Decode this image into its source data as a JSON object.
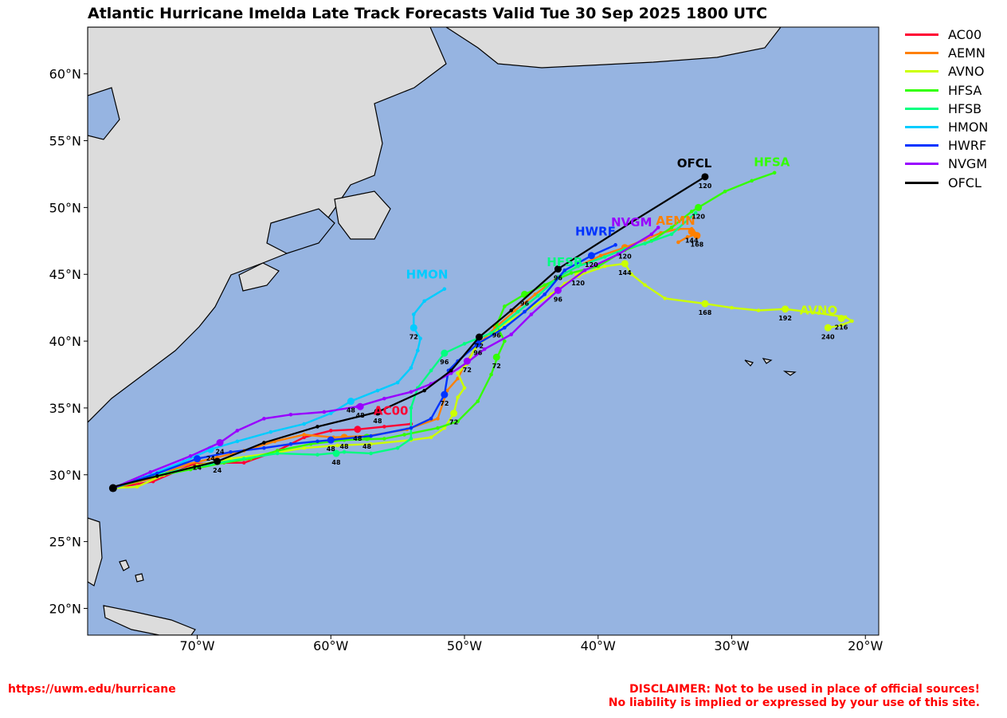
{
  "title": "Atlantic Hurricane Imelda Late Track Forecasts Valid Tue 30 Sep 2025 1800 UTC",
  "footer": {
    "link": "https://uwm.edu/hurricane",
    "disclaimer_line1": "DISCLAIMER: Not to be used in place of official sources!",
    "disclaimer_line2": "No liability is implied or expressed by your use of this site."
  },
  "colors": {
    "ocean": "#96b4e1",
    "land": "#dcdcdc"
  },
  "chart_data": {
    "type": "line",
    "xlabel": "",
    "ylabel": "",
    "xlim": [
      -78.2,
      -19.0
    ],
    "ylim": [
      18.0,
      63.5
    ],
    "x_ticks": [
      -70,
      -60,
      -50,
      -40,
      -30,
      -20
    ],
    "x_tick_labels": [
      "70°W",
      "60°W",
      "50°W",
      "40°W",
      "30°W",
      "20°W"
    ],
    "y_ticks": [
      20,
      25,
      30,
      35,
      40,
      45,
      50,
      55,
      60
    ],
    "y_tick_labels": [
      "20°N",
      "25°N",
      "30°N",
      "35°N",
      "40°N",
      "45°N",
      "50°N",
      "55°N",
      "60°N"
    ],
    "legend_position": "outside-right",
    "series": [
      {
        "name": "AC00",
        "color": "#ff0033",
        "points": [
          [
            -76.3,
            29.0
          ],
          [
            -73.3,
            29.5
          ],
          [
            -70.3,
            30.8
          ],
          [
            -68.0,
            30.9
          ],
          [
            -66.5,
            30.9
          ],
          [
            -64.0,
            31.8
          ],
          [
            -62.0,
            32.8
          ],
          [
            -60.0,
            33.3
          ],
          [
            -58.0,
            33.4
          ],
          [
            -56.0,
            33.6
          ],
          [
            -54.0,
            33.8
          ]
        ],
        "major": [
          {
            "x": -58.0,
            "y": 33.4,
            "h": "48"
          }
        ],
        "label": {
          "x": -55.5,
          "y": 34.5,
          "text": "AC00"
        }
      },
      {
        "name": "AEMN",
        "color": "#ff8000",
        "points": [
          [
            -76.3,
            29.0
          ],
          [
            -73.5,
            29.7
          ],
          [
            -70.7,
            30.8
          ],
          [
            -68.5,
            31.3
          ],
          [
            -66.5,
            31.8
          ],
          [
            -64.2,
            32.5
          ],
          [
            -62.0,
            33.0
          ],
          [
            -59.8,
            32.8
          ],
          [
            -57.2,
            32.9
          ],
          [
            -54.3,
            33.4
          ],
          [
            -52.0,
            34.2
          ],
          [
            -51.3,
            36.3
          ],
          [
            -50.5,
            37.2
          ],
          [
            -50.0,
            38.2
          ],
          [
            -49.0,
            39.7
          ],
          [
            -47.6,
            41.1
          ],
          [
            -46.2,
            42.3
          ],
          [
            -44.7,
            43.5
          ],
          [
            -43.0,
            44.8
          ],
          [
            -41.5,
            45.6
          ],
          [
            -39.8,
            46.4
          ],
          [
            -38.0,
            47.0
          ],
          [
            -36.5,
            47.6
          ],
          [
            -35.3,
            48.1
          ],
          [
            -34.0,
            48.4
          ],
          [
            -33.0,
            48.4
          ],
          [
            -32.6,
            48.0
          ],
          [
            -33.3,
            47.8
          ],
          [
            -34.0,
            47.4
          ]
        ],
        "major": [
          {
            "x": -59.0,
            "y": 32.8,
            "h": "48"
          },
          {
            "x": -47.6,
            "y": 41.1,
            "h": "96"
          },
          {
            "x": -38.0,
            "y": 47.0,
            "h": "120"
          },
          {
            "x": -33.0,
            "y": 48.2,
            "h": "144"
          },
          {
            "x": -32.6,
            "y": 47.9,
            "h": "168"
          }
        ],
        "label": {
          "x": -34.2,
          "y": 48.7,
          "text": "AEMN"
        }
      },
      {
        "name": "AVNO",
        "color": "#ccff00",
        "points": [
          [
            -76.3,
            29.0
          ],
          [
            -74.5,
            29.1
          ],
          [
            -72.5,
            30.0
          ],
          [
            -70.0,
            30.7
          ],
          [
            -67.5,
            31.2
          ],
          [
            -64.5,
            31.6
          ],
          [
            -62.0,
            32.0
          ],
          [
            -59.5,
            32.2
          ],
          [
            -57.0,
            32.3
          ],
          [
            -54.0,
            32.6
          ],
          [
            -52.5,
            32.8
          ],
          [
            -51.5,
            33.5
          ],
          [
            -50.8,
            34.6
          ],
          [
            -50.5,
            35.8
          ],
          [
            -50.0,
            36.5
          ],
          [
            -50.5,
            37.6
          ],
          [
            -49.8,
            38.3
          ],
          [
            -49.2,
            39.5
          ],
          [
            -48.0,
            40.5
          ],
          [
            -46.7,
            41.5
          ],
          [
            -45.0,
            42.5
          ],
          [
            -43.5,
            43.5
          ],
          [
            -42.5,
            44.3
          ],
          [
            -41.5,
            44.9
          ],
          [
            -39.5,
            45.6
          ],
          [
            -38.0,
            45.8
          ],
          [
            -37.5,
            45.0
          ],
          [
            -36.5,
            44.2
          ],
          [
            -35.0,
            43.2
          ],
          [
            -32.0,
            42.8
          ],
          [
            -30.0,
            42.5
          ],
          [
            -28.0,
            42.3
          ],
          [
            -26.0,
            42.4
          ],
          [
            -23.5,
            42.1
          ],
          [
            -21.5,
            41.8
          ],
          [
            -21.0,
            41.5
          ],
          [
            -21.8,
            41.2
          ],
          [
            -22.8,
            41.0
          ]
        ],
        "major": [
          {
            "x": -50.8,
            "y": 34.6,
            "h": "72"
          },
          {
            "x": -41.5,
            "y": 45.0,
            "h": "120"
          },
          {
            "x": -38.0,
            "y": 45.8,
            "h": "144"
          },
          {
            "x": -32.0,
            "y": 42.8,
            "h": "168"
          },
          {
            "x": -26.0,
            "y": 42.4,
            "h": "192"
          },
          {
            "x": -21.8,
            "y": 41.7,
            "h": "216"
          },
          {
            "x": -22.8,
            "y": 41.0,
            "h": "240"
          }
        ],
        "label": {
          "x": -23.5,
          "y": 42.0,
          "text": "AVNO"
        }
      },
      {
        "name": "HFSA",
        "color": "#33ff00",
        "points": [
          [
            -76.3,
            29.0
          ],
          [
            -73.5,
            29.8
          ],
          [
            -70.5,
            30.4
          ],
          [
            -68.0,
            30.9
          ],
          [
            -66.0,
            31.2
          ],
          [
            -64.0,
            31.8
          ],
          [
            -61.5,
            32.3
          ],
          [
            -59.0,
            32.6
          ],
          [
            -56.0,
            32.7
          ],
          [
            -54.5,
            33.0
          ],
          [
            -52.0,
            33.5
          ],
          [
            -50.5,
            34.0
          ],
          [
            -49.0,
            35.5
          ],
          [
            -48.0,
            37.5
          ],
          [
            -47.5,
            38.9
          ],
          [
            -47.0,
            40.0
          ],
          [
            -47.6,
            41.2
          ],
          [
            -47.0,
            42.6
          ],
          [
            -45.5,
            43.5
          ],
          [
            -44.0,
            44.2
          ],
          [
            -42.0,
            45.1
          ],
          [
            -40.0,
            45.6
          ],
          [
            -38.0,
            46.8
          ],
          [
            -36.0,
            47.5
          ],
          [
            -34.5,
            48.5
          ],
          [
            -33.0,
            49.7
          ],
          [
            -32.5,
            50.0
          ],
          [
            -30.5,
            51.2
          ],
          [
            -28.5,
            52.0
          ],
          [
            -26.8,
            52.6
          ]
        ],
        "major": [
          {
            "x": -57.3,
            "y": 32.8,
            "h": "48"
          },
          {
            "x": -47.6,
            "y": 38.8,
            "h": "72"
          },
          {
            "x": -45.5,
            "y": 43.5,
            "h": "96"
          },
          {
            "x": -32.5,
            "y": 50.0,
            "h": "120"
          }
        ],
        "label": {
          "x": -27.0,
          "y": 53.1,
          "text": "HFSA"
        }
      },
      {
        "name": "HFSB",
        "color": "#00ff80",
        "points": [
          [
            -76.3,
            29.0
          ],
          [
            -74.0,
            29.8
          ],
          [
            -71.5,
            30.3
          ],
          [
            -69.0,
            30.8
          ],
          [
            -66.5,
            31.2
          ],
          [
            -64.0,
            31.6
          ],
          [
            -61.0,
            31.5
          ],
          [
            -59.0,
            31.7
          ],
          [
            -57.0,
            31.6
          ],
          [
            -55.0,
            32.0
          ],
          [
            -54.0,
            32.7
          ],
          [
            -54.0,
            35.0
          ],
          [
            -53.5,
            36.5
          ],
          [
            -52.5,
            37.8
          ],
          [
            -51.5,
            39.1
          ],
          [
            -50.0,
            39.8
          ],
          [
            -48.0,
            40.6
          ],
          [
            -46.0,
            42.2
          ],
          [
            -44.5,
            43.4
          ],
          [
            -43.0,
            44.8
          ],
          [
            -41.5,
            45.6
          ],
          [
            -39.5,
            46.3
          ],
          [
            -38.0,
            46.9
          ],
          [
            -36.5,
            47.3
          ],
          [
            -34.5,
            48.0
          ],
          [
            -32.7,
            49.6
          ]
        ],
        "major": [
          {
            "x": -59.6,
            "y": 31.6,
            "h": "48"
          },
          {
            "x": -51.5,
            "y": 39.1,
            "h": "96"
          }
        ],
        "label": {
          "x": -42.5,
          "y": 45.6,
          "text": "HFSB"
        }
      },
      {
        "name": "HMON",
        "color": "#00ccff",
        "points": [
          [
            -76.3,
            29.0
          ],
          [
            -73.5,
            30.0
          ],
          [
            -71.0,
            31.0
          ],
          [
            -69.0,
            31.9
          ],
          [
            -67.0,
            32.5
          ],
          [
            -64.5,
            33.2
          ],
          [
            -62.0,
            33.8
          ],
          [
            -60.0,
            34.6
          ],
          [
            -58.5,
            35.5
          ],
          [
            -56.5,
            36.3
          ],
          [
            -55.0,
            36.9
          ],
          [
            -54.0,
            38.0
          ],
          [
            -53.5,
            39.3
          ],
          [
            -53.3,
            40.2
          ],
          [
            -53.8,
            41.0
          ],
          [
            -53.8,
            42.0
          ],
          [
            -53.0,
            43.0
          ],
          [
            -51.5,
            43.9
          ]
        ],
        "major": [
          {
            "x": -69.0,
            "y": 31.9,
            "h": "24"
          },
          {
            "x": -58.5,
            "y": 35.5,
            "h": "48"
          },
          {
            "x": -53.8,
            "y": 41.0,
            "h": "72"
          }
        ],
        "label": {
          "x": -52.8,
          "y": 44.7,
          "text": "HMON"
        }
      },
      {
        "name": "HWRF",
        "color": "#0033ff",
        "points": [
          [
            -76.3,
            29.0
          ],
          [
            -73.0,
            30.1
          ],
          [
            -70.0,
            31.2
          ],
          [
            -67.5,
            31.7
          ],
          [
            -65.0,
            32.0
          ],
          [
            -63.0,
            32.3
          ],
          [
            -61.0,
            32.5
          ],
          [
            -60.0,
            32.6
          ],
          [
            -57.0,
            32.9
          ],
          [
            -54.0,
            33.5
          ],
          [
            -52.5,
            34.2
          ],
          [
            -51.5,
            36.0
          ],
          [
            -51.2,
            37.8
          ],
          [
            -50.5,
            38.5
          ],
          [
            -49.0,
            39.8
          ],
          [
            -47.0,
            41.0
          ],
          [
            -45.5,
            42.2
          ],
          [
            -44.0,
            43.5
          ],
          [
            -42.5,
            45.3
          ],
          [
            -40.5,
            46.4
          ],
          [
            -38.7,
            47.2
          ]
        ],
        "major": [
          {
            "x": -70.0,
            "y": 31.2,
            "h": "24"
          },
          {
            "x": -60.0,
            "y": 32.6,
            "h": "48"
          },
          {
            "x": -51.5,
            "y": 36.0,
            "h": "72"
          },
          {
            "x": -49.0,
            "y": 39.8,
            "h": "96"
          },
          {
            "x": -40.5,
            "y": 46.4,
            "h": "120"
          }
        ],
        "label": {
          "x": -40.2,
          "y": 47.9,
          "text": "HWRF"
        }
      },
      {
        "name": "NVGM",
        "color": "#9900ff",
        "points": [
          [
            -76.3,
            29.0
          ],
          [
            -73.5,
            30.2
          ],
          [
            -70.5,
            31.4
          ],
          [
            -68.3,
            32.4
          ],
          [
            -67.0,
            33.3
          ],
          [
            -65.0,
            34.2
          ],
          [
            -63.0,
            34.5
          ],
          [
            -60.5,
            34.7
          ],
          [
            -58.0,
            35.1
          ],
          [
            -56.0,
            35.7
          ],
          [
            -54.0,
            36.2
          ],
          [
            -52.5,
            36.8
          ],
          [
            -51.0,
            37.6
          ],
          [
            -49.8,
            38.4
          ],
          [
            -48.5,
            39.4
          ],
          [
            -46.5,
            40.5
          ],
          [
            -45.0,
            42.0
          ],
          [
            -43.0,
            43.8
          ],
          [
            -41.0,
            45.3
          ],
          [
            -38.5,
            46.5
          ],
          [
            -36.0,
            48.0
          ],
          [
            -35.5,
            48.5
          ]
        ],
        "major": [
          {
            "x": -68.3,
            "y": 32.4,
            "h": "24"
          },
          {
            "x": -57.8,
            "y": 35.1,
            "h": "48"
          },
          {
            "x": -49.8,
            "y": 38.5,
            "h": "72"
          },
          {
            "x": -43.0,
            "y": 43.8,
            "h": "96"
          }
        ],
        "label": {
          "x": -37.5,
          "y": 48.6,
          "text": "NVGM"
        }
      },
      {
        "name": "OFCL",
        "color": "#000000",
        "points": [
          [
            -76.3,
            29.1
          ],
          [
            -73.0,
            29.9
          ],
          [
            -68.5,
            31.0
          ],
          [
            -65.0,
            32.4
          ],
          [
            -61.0,
            33.6
          ],
          [
            -56.5,
            34.7
          ],
          [
            -53.0,
            36.3
          ],
          [
            -51.0,
            37.8
          ],
          [
            -48.9,
            40.3
          ],
          [
            -46.5,
            42.3
          ],
          [
            -43.0,
            45.4
          ],
          [
            -37.5,
            48.9
          ],
          [
            -32.0,
            52.3
          ]
        ],
        "major": [
          {
            "x": -68.5,
            "y": 31.0,
            "h": "24"
          },
          {
            "x": -56.5,
            "y": 34.7,
            "h": "48"
          },
          {
            "x": -48.9,
            "y": 40.3,
            "h": "72"
          },
          {
            "x": -43.0,
            "y": 45.4,
            "h": "96"
          },
          {
            "x": -32.0,
            "y": 52.3,
            "h": "120"
          }
        ],
        "label": {
          "x": -32.8,
          "y": 53.0,
          "text": "OFCL"
        }
      }
    ]
  }
}
